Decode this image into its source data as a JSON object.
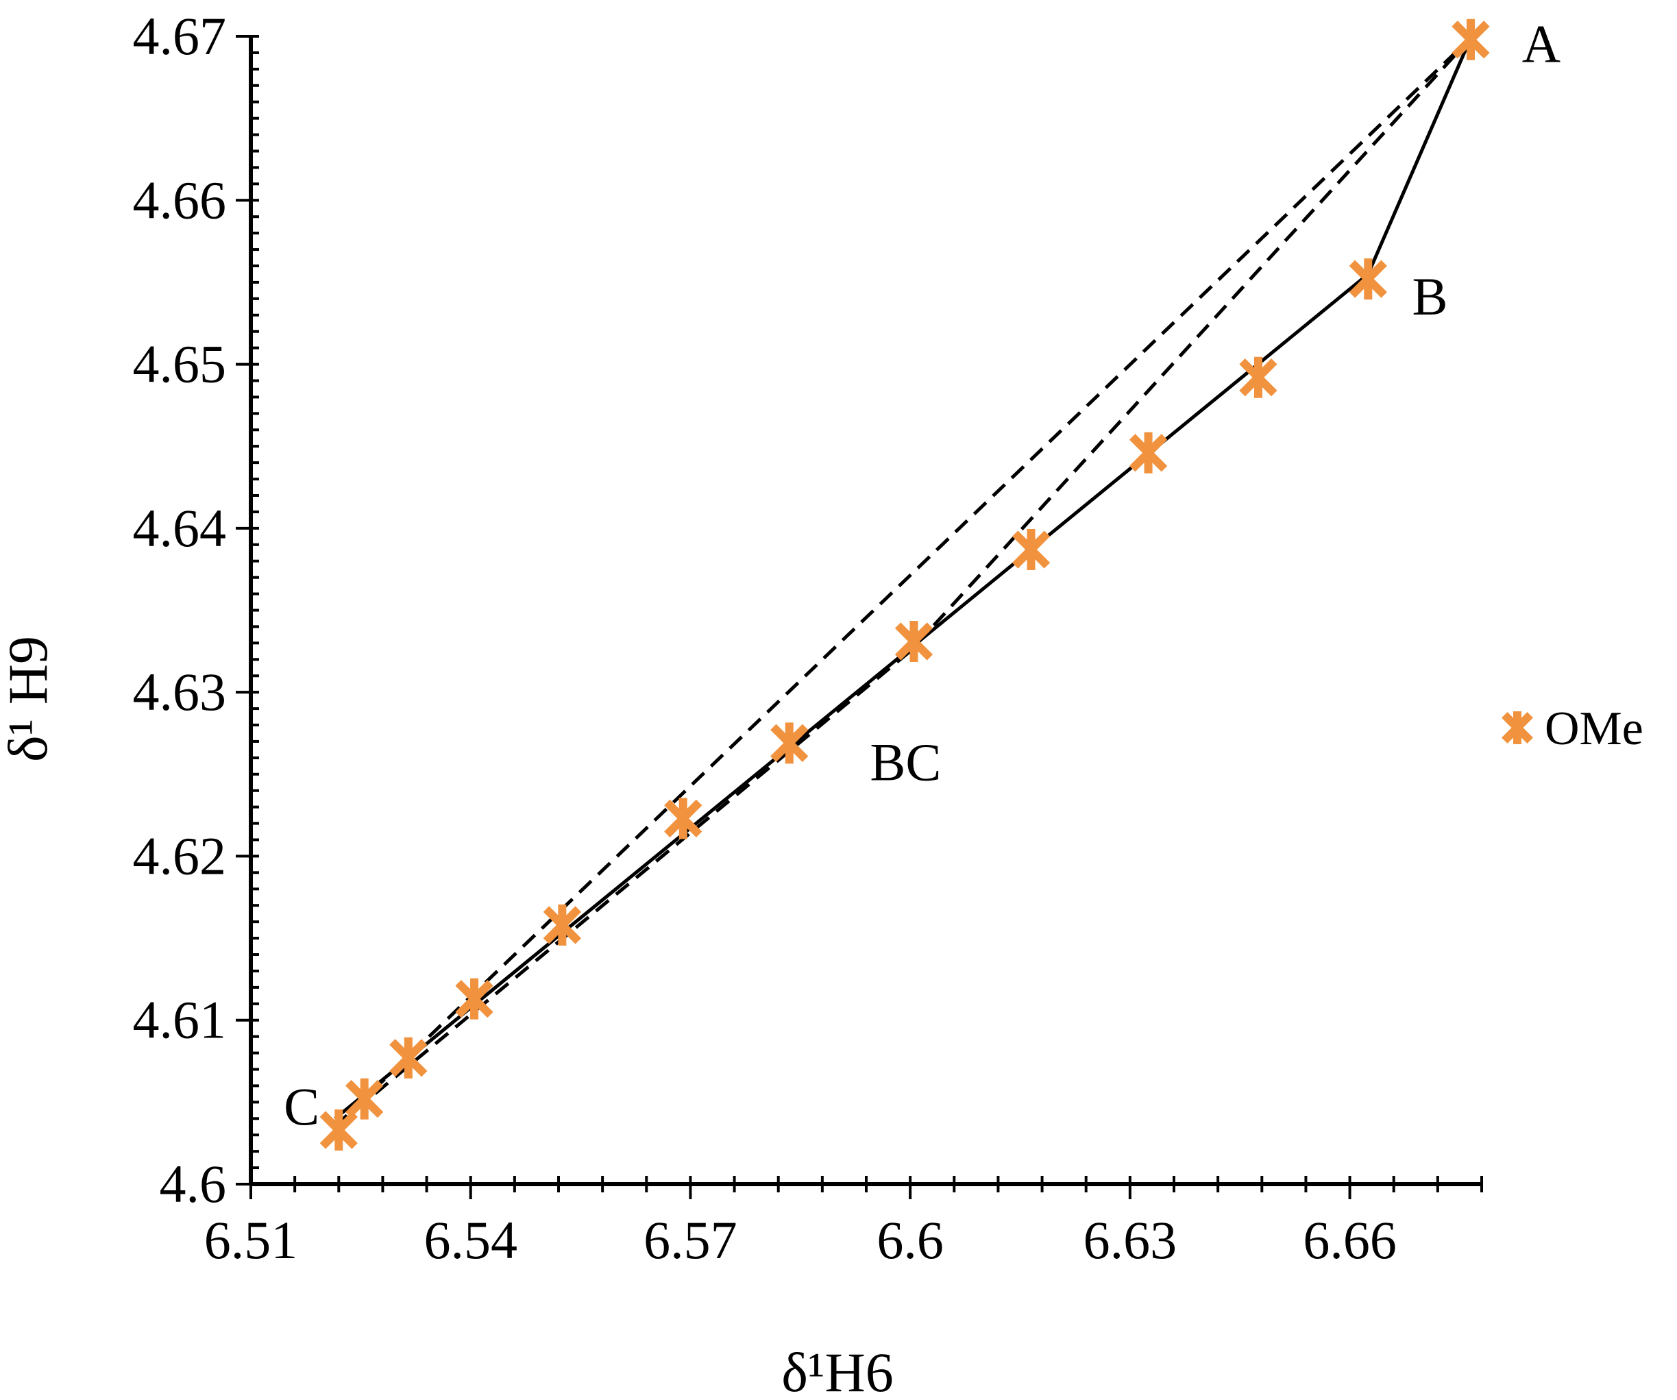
{
  "chart_data": {
    "type": "scatter",
    "xlabel": "δ¹H6",
    "ylabel": "δ¹ H9",
    "xlim": [
      6.51,
      6.678
    ],
    "ylim": [
      4.6,
      4.67
    ],
    "xticks": [
      6.51,
      6.54,
      6.57,
      6.6,
      6.63,
      6.66
    ],
    "xtick_labels": [
      "6.51",
      "6.54",
      "6.57",
      "6.6",
      "6.63",
      "6.66"
    ],
    "yticks": [
      4.6,
      4.61,
      4.62,
      4.63,
      4.64,
      4.65,
      4.66,
      4.67
    ],
    "ytick_labels": [
      "4.6",
      "4.61",
      "4.62",
      "4.63",
      "4.64",
      "4.65",
      "4.66",
      "4.67"
    ],
    "x_minor_step": 0.006,
    "y_minor_step": 0.001,
    "legend": {
      "position": "right",
      "entries": [
        "OMe"
      ]
    },
    "grid": false,
    "series": [
      {
        "name": "OMe",
        "marker": "asterisk",
        "color": "#F0923E",
        "points": [
          {
            "x": 6.522,
            "y": 4.6033
          },
          {
            "x": 6.5255,
            "y": 4.6052
          },
          {
            "x": 6.5315,
            "y": 4.6077
          },
          {
            "x": 6.5405,
            "y": 4.6113
          },
          {
            "x": 6.5525,
            "y": 4.6158
          },
          {
            "x": 6.569,
            "y": 4.6223
          },
          {
            "x": 6.5835,
            "y": 4.6269
          },
          {
            "x": 6.6005,
            "y": 4.6331
          },
          {
            "x": 6.6165,
            "y": 4.6387
          },
          {
            "x": 6.6325,
            "y": 4.6446
          },
          {
            "x": 6.6475,
            "y": 4.6492
          },
          {
            "x": 6.6625,
            "y": 4.6552
          },
          {
            "x": 6.6765,
            "y": 4.6698
          }
        ]
      }
    ],
    "fit_lines": [
      {
        "style": "solid",
        "points": [
          {
            "x": 6.5215,
            "y": 4.604
          },
          {
            "x": 6.6625,
            "y": 4.6555
          },
          {
            "x": 6.6765,
            "y": 4.6699
          }
        ]
      },
      {
        "style": "dashed",
        "points": [
          {
            "x": 6.5215,
            "y": 4.6035
          },
          {
            "x": 6.6765,
            "y": 4.6699
          }
        ]
      },
      {
        "style": "dashed",
        "points": [
          {
            "x": 6.5215,
            "y": 4.6035
          },
          {
            "x": 6.6,
            "y": 4.6325
          },
          {
            "x": 6.6765,
            "y": 4.6699
          }
        ]
      }
    ],
    "annotations": [
      {
        "text": "A",
        "x": 6.6835,
        "y": 4.6696
      },
      {
        "text": "B",
        "x": 6.6685,
        "y": 4.6542
      },
      {
        "text": "BC",
        "x": 6.5945,
        "y": 4.6258
      },
      {
        "text": "C",
        "x": 6.5145,
        "y": 4.6048
      }
    ]
  }
}
